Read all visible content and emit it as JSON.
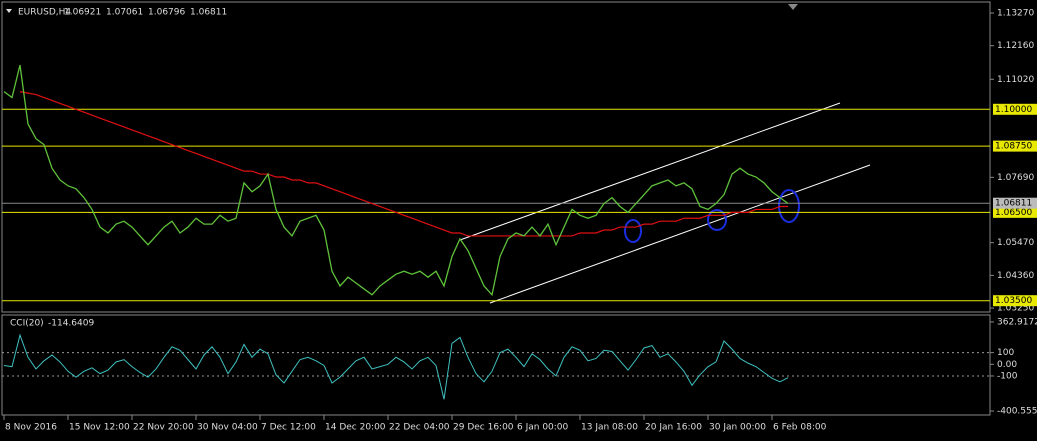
{
  "chart_data": {
    "type": "price-line",
    "symbol": "EURUSD,H4",
    "ohlc": [
      1.06921,
      1.07061,
      1.06796,
      1.06811
    ],
    "ylim": [
      1.0315,
      1.1361
    ],
    "yticks": [
      {
        "value": 1.1327,
        "label": "1.13270"
      },
      {
        "value": 1.1216,
        "label": "1.12160"
      },
      {
        "value": 1.1102,
        "label": "1.11020"
      },
      {
        "value": 1.0769,
        "label": "1.07690"
      },
      {
        "value": 1.0547,
        "label": "1.05470"
      },
      {
        "value": 1.0436,
        "label": "1.04360"
      },
      {
        "value": 1.0325,
        "label": "1.03250"
      }
    ],
    "levels": [
      {
        "value": 1.1,
        "label": "1.10000"
      },
      {
        "value": 1.0875,
        "label": "1.08750"
      },
      {
        "value": 1.065,
        "label": "1.06500"
      },
      {
        "value": 1.035,
        "label": "1.03500"
      }
    ],
    "last_price": {
      "value": 1.06811,
      "label": "1.06811"
    },
    "close": [
      1.106,
      1.104,
      1.115,
      1.095,
      1.09,
      1.088,
      1.08,
      1.076,
      1.074,
      1.073,
      1.07,
      1.066,
      1.06,
      1.058,
      1.061,
      1.062,
      1.06,
      1.057,
      1.054,
      1.057,
      1.06,
      1.062,
      1.058,
      1.06,
      1.063,
      1.061,
      1.061,
      1.064,
      1.062,
      1.063,
      1.075,
      1.072,
      1.074,
      1.078,
      1.066,
      1.06,
      1.057,
      1.062,
      1.063,
      1.064,
      1.059,
      1.045,
      1.04,
      1.043,
      1.041,
      1.039,
      1.037,
      1.04,
      1.042,
      1.044,
      1.045,
      1.044,
      1.045,
      1.043,
      1.045,
      1.04,
      1.05,
      1.056,
      1.052,
      1.046,
      1.04,
      1.037,
      1.05,
      1.056,
      1.058,
      1.057,
      1.06,
      1.057,
      1.061,
      1.054,
      1.06,
      1.066,
      1.064,
      1.063,
      1.064,
      1.068,
      1.07,
      1.067,
      1.065,
      1.068,
      1.071,
      1.074,
      1.075,
      1.076,
      1.074,
      1.075,
      1.073,
      1.067,
      1.066,
      1.068,
      1.071,
      1.078,
      1.08,
      1.078,
      1.077,
      1.075,
      1.072,
      1.07,
      1.068
    ],
    "ma": [
      null,
      null,
      1.106,
      1.1055,
      1.105,
      1.104,
      1.103,
      1.102,
      1.101,
      1.1,
      1.099,
      1.098,
      1.097,
      1.096,
      1.095,
      1.094,
      1.093,
      1.092,
      1.091,
      1.09,
      1.089,
      1.088,
      1.087,
      1.086,
      1.085,
      1.084,
      1.083,
      1.082,
      1.081,
      1.08,
      1.079,
      1.079,
      1.078,
      1.078,
      1.077,
      1.077,
      1.076,
      1.076,
      1.075,
      1.075,
      1.074,
      1.073,
      1.072,
      1.071,
      1.07,
      1.069,
      1.068,
      1.067,
      1.066,
      1.065,
      1.064,
      1.063,
      1.062,
      1.061,
      1.06,
      1.059,
      1.058,
      1.058,
      1.057,
      1.057,
      1.057,
      1.057,
      1.057,
      1.057,
      1.057,
      1.057,
      1.057,
      1.057,
      1.057,
      1.057,
      1.057,
      1.057,
      1.058,
      1.058,
      1.058,
      1.059,
      1.059,
      1.06,
      1.06,
      1.06,
      1.061,
      1.061,
      1.062,
      1.062,
      1.062,
      1.063,
      1.063,
      1.063,
      1.064,
      1.064,
      1.064,
      1.065,
      1.065,
      1.065,
      1.066,
      1.066,
      1.066,
      1.067,
      1.067
    ],
    "cci_label": "CCI(20)",
    "cci_ylim": [
      -426,
      414
    ],
    "cci_ticks": [
      {
        "value": 362.9172,
        "label": "362.9172"
      },
      100,
      {
        "value": 0,
        "label": "0.00"
      },
      -100,
      {
        "value": -400.5553,
        "label": "-400.5553"
      }
    ],
    "cci": [
      -10,
      -20,
      250,
      60,
      -40,
      30,
      80,
      20,
      -60,
      -110,
      -60,
      -30,
      -80,
      -50,
      20,
      40,
      -20,
      -70,
      -110,
      -40,
      60,
      150,
      120,
      40,
      -40,
      80,
      150,
      60,
      -80,
      20,
      170,
      60,
      130,
      90,
      -90,
      -160,
      -60,
      40,
      60,
      30,
      -10,
      -160,
      -110,
      -40,
      30,
      60,
      -40,
      -20,
      0,
      60,
      20,
      -40,
      30,
      60,
      -10,
      -300,
      180,
      230,
      60,
      -80,
      -150,
      -60,
      100,
      130,
      60,
      -20,
      90,
      40,
      -40,
      -100,
      60,
      150,
      120,
      30,
      50,
      120,
      110,
      30,
      -50,
      40,
      140,
      160,
      60,
      90,
      20,
      -60,
      -180,
      -90,
      -20,
      20,
      200,
      130,
      50,
      10,
      -20,
      -70,
      -120,
      -150,
      -114.6409
    ],
    "x_labels": [
      "8 Nov 2016",
      "15 Nov 12:00",
      "22 Nov 20:00",
      "30 Nov 04:00",
      "7 Dec 12:00",
      "14 Dec 20:00",
      "22 Dec 04:00",
      "29 Dec 16:00",
      "6 Jan 00:00",
      "13 Jan 08:00",
      "20 Jan 16:00",
      "30 Jan 00:00",
      "6 Feb 08:00"
    ],
    "colors": {
      "price": "#5fc13a",
      "ma": "#e01010",
      "cci": "#3fc0c0",
      "level": "#e8e800",
      "last": "#888888"
    }
  }
}
